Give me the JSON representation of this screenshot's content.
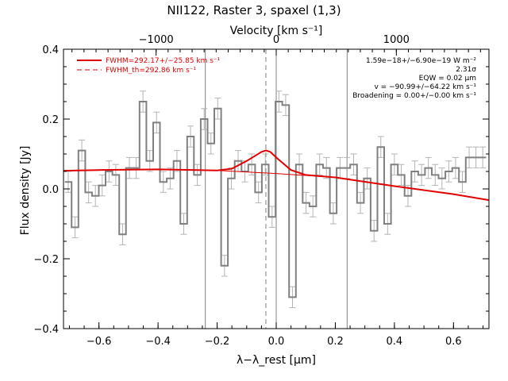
{
  "chart_data": {
    "type": "line",
    "title": "NII122, Raster 3, spaxel (1,3)",
    "xlabel": "λ−λ_rest [μm]",
    "ylabel": "Flux density [Jy]",
    "top_xlabel": "Velocity [km s⁻¹]",
    "xlim": [
      -0.72,
      0.72
    ],
    "ylim": [
      -0.4,
      0.4
    ],
    "x_ticks": [
      -0.6,
      -0.4,
      -0.2,
      0.0,
      0.2,
      0.4,
      0.6
    ],
    "x_tick_labels": [
      "−0.6",
      "−0.4",
      "−0.2",
      "0.0",
      "0.2",
      "0.4",
      "0.6"
    ],
    "y_ticks": [
      -0.4,
      -0.2,
      0.0,
      0.2,
      0.4
    ],
    "y_tick_labels": [
      "−0.4",
      "−0.2",
      "0.0",
      "0.2",
      "0.4"
    ],
    "top_ticks_velocity": [
      -1000,
      0,
      1000
    ],
    "top_tick_labels": [
      "−1000",
      "0",
      "1000"
    ],
    "grid": false,
    "legend_position": "top-left",
    "colors": {
      "fit": "#e00000",
      "spectrum": "#808080",
      "errorbar": "#b4b4b4",
      "reference": "#808080"
    },
    "series": [
      {
        "name": "spectrum",
        "style": "step",
        "x": [
          -0.704,
          -0.681,
          -0.658,
          -0.635,
          -0.612,
          -0.589,
          -0.566,
          -0.543,
          -0.52,
          -0.497,
          -0.474,
          -0.451,
          -0.428,
          -0.405,
          -0.382,
          -0.359,
          -0.336,
          -0.313,
          -0.29,
          -0.267,
          -0.244,
          -0.221,
          -0.198,
          -0.175,
          -0.152,
          -0.129,
          -0.106,
          -0.083,
          -0.06,
          -0.037,
          -0.014,
          0.009,
          0.032,
          0.055,
          0.078,
          0.101,
          0.124,
          0.147,
          0.17,
          0.193,
          0.216,
          0.239,
          0.262,
          0.285,
          0.308,
          0.331,
          0.354,
          0.377,
          0.4,
          0.423,
          0.446,
          0.469,
          0.492,
          0.515,
          0.538,
          0.561,
          0.584,
          0.607,
          0.63,
          0.653,
          0.676,
          0.699
        ],
        "y": [
          0.02,
          -0.11,
          0.11,
          -0.01,
          -0.02,
          0.01,
          0.05,
          0.04,
          -0.13,
          0.06,
          0.06,
          0.25,
          0.08,
          0.19,
          0.02,
          0.03,
          0.08,
          -0.1,
          0.15,
          0.04,
          0.2,
          0.13,
          0.23,
          -0.22,
          0.03,
          0.08,
          0.05,
          0.07,
          -0.01,
          0.07,
          -0.08,
          0.25,
          0.24,
          -0.31,
          0.07,
          -0.04,
          -0.05,
          0.07,
          0.06,
          -0.07,
          0.06,
          0.06,
          0.07,
          -0.04,
          0.03,
          -0.12,
          0.12,
          -0.1,
          0.07,
          0.04,
          -0.02,
          0.05,
          0.04,
          0.06,
          0.04,
          0.03,
          0.05,
          0.06,
          0.02,
          0.09,
          0.09,
          0.09
        ],
        "err": [
          0.03,
          0.03,
          0.03,
          0.03,
          0.03,
          0.03,
          0.03,
          0.03,
          0.03,
          0.03,
          0.03,
          0.03,
          0.03,
          0.03,
          0.03,
          0.03,
          0.03,
          0.03,
          0.03,
          0.03,
          0.03,
          0.03,
          0.03,
          0.03,
          0.03,
          0.03,
          0.03,
          0.03,
          0.03,
          0.03,
          0.03,
          0.03,
          0.03,
          0.03,
          0.03,
          0.03,
          0.03,
          0.03,
          0.03,
          0.03,
          0.03,
          0.03,
          0.03,
          0.03,
          0.03,
          0.03,
          0.03,
          0.03,
          0.03,
          0.03,
          0.03,
          0.03,
          0.03,
          0.03,
          0.03,
          0.03,
          0.03,
          0.03,
          0.03,
          0.03,
          0.03,
          0.03
        ]
      },
      {
        "name": "FWHM=292.17+/−25.85 km s⁻¹",
        "style": "line",
        "x": [
          -0.72,
          -0.6,
          -0.4,
          -0.2,
          -0.15,
          -0.1,
          -0.05,
          -0.035,
          -0.02,
          0.0,
          0.05,
          0.1,
          0.2,
          0.4,
          0.6,
          0.72
        ],
        "y": [
          0.052,
          0.054,
          0.056,
          0.053,
          0.058,
          0.08,
          0.106,
          0.11,
          0.106,
          0.09,
          0.054,
          0.04,
          0.033,
          0.008,
          -0.015,
          -0.032
        ]
      },
      {
        "name": "FWHM_th=292.86 km s⁻¹",
        "style": "dashed",
        "x": [
          -0.72,
          -0.4,
          -0.2,
          0.0,
          0.2,
          0.4,
          0.6,
          0.72
        ],
        "y": [
          0.052,
          0.056,
          0.053,
          0.044,
          0.033,
          0.008,
          -0.015,
          -0.032
        ]
      }
    ],
    "reference_lines": [
      {
        "x": -0.24,
        "style": "solid"
      },
      {
        "x": -0.035,
        "style": "dashed"
      },
      {
        "x": 0.0,
        "style": "solid"
      },
      {
        "x": 0.24,
        "style": "solid"
      }
    ],
    "legend": [
      {
        "label": "FWHM=292.17+/−25.85 km s⁻¹",
        "style": "solid"
      },
      {
        "label": "FWHM_th=292.86 km s⁻¹",
        "style": "dashed"
      }
    ],
    "annotations": [
      "1.59e−18+/−6.90e−19 W m⁻²",
      "2.31σ",
      "EQW = 0.02 μm",
      "v = −90.99+/−64.22 km s⁻¹",
      "Broadening = 0.00+/−0.00 km s⁻¹"
    ]
  }
}
